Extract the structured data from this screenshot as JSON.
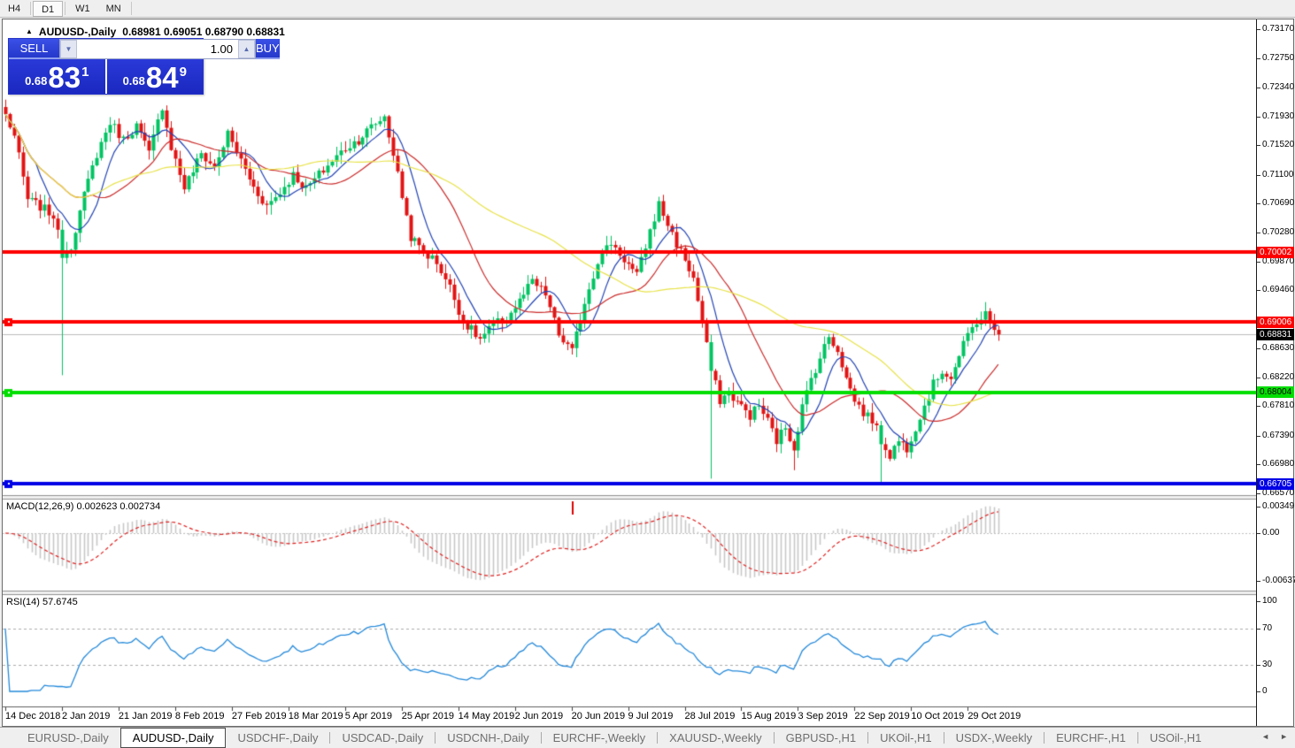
{
  "toolbar": {
    "timeframes": [
      {
        "label": "H4",
        "active": false
      },
      {
        "label": "D1",
        "active": true
      },
      {
        "label": "W1",
        "active": false
      },
      {
        "label": "MN",
        "active": false
      }
    ]
  },
  "window": {
    "collapse_icon": "▲",
    "title_symbol": "AUDUSD-,Daily",
    "title_quotes": "0.68981 0.69051 0.68790 0.68831"
  },
  "trade_panel": {
    "sell_label": "SELL",
    "buy_label": "BUY",
    "volume": "1.00",
    "spinner_down_icon": "▼",
    "spinner_up_icon": "▲",
    "sell_price": {
      "prefix": "0.68",
      "big": "83",
      "sup": "1"
    },
    "buy_price": {
      "prefix": "0.68",
      "big": "84",
      "sup": "9"
    }
  },
  "price_axis": {
    "ticks": [
      "0.73170",
      "0.72750",
      "0.72340",
      "0.71930",
      "0.71520",
      "0.71100",
      "0.70690",
      "0.70280",
      "0.69870",
      "0.69460",
      "0.68630",
      "0.68220",
      "0.67810",
      "0.67390",
      "0.66980",
      "0.66570"
    ],
    "tags": [
      {
        "value": "0.70002",
        "bg": "#FE0000",
        "fg": "#FFFFFF"
      },
      {
        "value": "0.69006",
        "bg": "#FE0000",
        "fg": "#FFFFFF"
      },
      {
        "value": "0.68831",
        "bg": "#000000",
        "fg": "#FFFFFF"
      },
      {
        "value": "0.68004",
        "bg": "#00DE00",
        "fg": "#000000"
      },
      {
        "value": "0.66705",
        "bg": "#0000E6",
        "fg": "#FFFFFF"
      }
    ]
  },
  "indicators": {
    "macd": {
      "label": "MACD(12,26,9) 0.002623 0.002734",
      "axis": [
        "0.00349",
        "0.00",
        "-0.00637"
      ],
      "fast": 12,
      "slow": 26,
      "signal": 9,
      "histogram_color": "#C8C8C8",
      "signal_color": "#E02020",
      "marker": {
        "bar": 130,
        "color": "#DD0000"
      }
    },
    "rsi": {
      "label": "RSI(14) 57.6745",
      "period": 14,
      "axis": [
        "100",
        "70",
        "30",
        "0"
      ],
      "levels": [
        70,
        30
      ],
      "line_color": "#2389DA",
      "level_color": "#ABABAB"
    }
  },
  "chart_data": {
    "type": "candlestick",
    "symbol": "AUDUSD",
    "timeframe": "Daily",
    "ohlc": {
      "open": 0.68981,
      "high": 0.69051,
      "low": 0.6879,
      "close": 0.68831
    },
    "current_price": 0.68831,
    "bars": 229,
    "y_axis_range": [
      0.66546,
      0.733
    ],
    "x_dates": [
      "14 Dec 2018",
      "2 Jan 2019",
      "21 Jan 2019",
      "8 Feb 2019",
      "27 Feb 2019",
      "18 Mar 2019",
      "5 Apr 2019",
      "25 Apr 2019",
      "14 May 2019",
      "2 Jun 2019",
      "20 Jun 2019",
      "9 Jul 2019",
      "28 Jul 2019",
      "15 Aug 2019",
      "3 Sep 2019",
      "22 Sep 2019",
      "10 Oct 2019",
      "29 Oct 2019"
    ],
    "bars_per_date_label": 13,
    "up_color": "#00C462",
    "down_color": "#E21414",
    "ma_lines": [
      {
        "period": 8,
        "color": "#2243B5"
      },
      {
        "period": 21,
        "color": "#CC2B2B"
      },
      {
        "period": 55,
        "color": "#E8E34A"
      }
    ],
    "horizontal_lines": [
      {
        "price": 0.70002,
        "color": "#FE0000",
        "anchor": false
      },
      {
        "price": 0.69006,
        "color": "#FE0000",
        "anchor": true
      },
      {
        "price": 0.68004,
        "color": "#00DE00",
        "anchor": true
      },
      {
        "price": 0.66705,
        "color": "#0000E6",
        "anchor": true
      }
    ],
    "current_price_line_color": "#BDBDBD",
    "price_anchors": [
      [
        0,
        0.7195
      ],
      [
        2,
        0.7165
      ],
      [
        5,
        0.7075
      ],
      [
        8,
        0.7065
      ],
      [
        11,
        0.7052
      ],
      [
        13,
        0.6998
      ],
      [
        15,
        0.701
      ],
      [
        18,
        0.708
      ],
      [
        21,
        0.714
      ],
      [
        24,
        0.7185
      ],
      [
        27,
        0.716
      ],
      [
        30,
        0.718
      ],
      [
        33,
        0.714
      ],
      [
        36,
        0.7208
      ],
      [
        38,
        0.715
      ],
      [
        41,
        0.7092
      ],
      [
        45,
        0.714
      ],
      [
        48,
        0.712
      ],
      [
        51,
        0.7168
      ],
      [
        54,
        0.713
      ],
      [
        57,
        0.7092
      ],
      [
        60,
        0.7066
      ],
      [
        63,
        0.7085
      ],
      [
        66,
        0.711
      ],
      [
        69,
        0.709
      ],
      [
        72,
        0.711
      ],
      [
        75,
        0.713
      ],
      [
        78,
        0.7148
      ],
      [
        81,
        0.716
      ],
      [
        84,
        0.7178
      ],
      [
        87,
        0.7193
      ],
      [
        89,
        0.714
      ],
      [
        91,
        0.708
      ],
      [
        93,
        0.7022
      ],
      [
        96,
        0.7
      ],
      [
        99,
        0.6986
      ],
      [
        102,
        0.695
      ],
      [
        105,
        0.6902
      ],
      [
        109,
        0.6876
      ],
      [
        112,
        0.6896
      ],
      [
        115,
        0.6906
      ],
      [
        118,
        0.693
      ],
      [
        121,
        0.6958
      ],
      [
        124,
        0.694
      ],
      [
        127,
        0.6882
      ],
      [
        130,
        0.6858
      ],
      [
        133,
        0.693
      ],
      [
        136,
        0.6988
      ],
      [
        139,
        0.7014
      ],
      [
        142,
        0.699
      ],
      [
        145,
        0.6966
      ],
      [
        148,
        0.703
      ],
      [
        150,
        0.7068
      ],
      [
        152,
        0.704
      ],
      [
        154,
        0.7012
      ],
      [
        156,
        0.699
      ],
      [
        158,
        0.6962
      ],
      [
        160,
        0.69
      ],
      [
        162,
        0.6832
      ],
      [
        164,
        0.679
      ],
      [
        166,
        0.68
      ],
      [
        169,
        0.678
      ],
      [
        171,
        0.6768
      ],
      [
        173,
        0.6782
      ],
      [
        175,
        0.676
      ],
      [
        177,
        0.6732
      ],
      [
        179,
        0.6752
      ],
      [
        181,
        0.6722
      ],
      [
        183,
        0.678
      ],
      [
        185,
        0.682
      ],
      [
        187,
        0.685
      ],
      [
        189,
        0.688
      ],
      [
        191,
        0.6862
      ],
      [
        193,
        0.682
      ],
      [
        195,
        0.679
      ],
      [
        197,
        0.6772
      ],
      [
        199,
        0.6762
      ],
      [
        201,
        0.6732
      ],
      [
        203,
        0.6712
      ],
      [
        205,
        0.6732
      ],
      [
        207,
        0.6722
      ],
      [
        209,
        0.6752
      ],
      [
        211,
        0.6782
      ],
      [
        213,
        0.6812
      ],
      [
        215,
        0.6832
      ],
      [
        217,
        0.6822
      ],
      [
        219,
        0.6852
      ],
      [
        221,
        0.6882
      ],
      [
        223,
        0.6902
      ],
      [
        225,
        0.6912
      ],
      [
        226,
        0.6896
      ],
      [
        228,
        0.68831
      ]
    ],
    "spikes": [
      {
        "bar": 13,
        "low": 0.6825,
        "dir": "up"
      },
      {
        "bar": 162,
        "low": 0.6678,
        "dir": "up"
      },
      {
        "bar": 181,
        "low": 0.669
      },
      {
        "bar": 201,
        "low": 0.6671,
        "dir": "up"
      },
      {
        "bar": 225,
        "high": 0.6929,
        "dir": "up"
      }
    ]
  },
  "tabs": {
    "items": [
      {
        "label": "EURUSD-,Daily",
        "active": false
      },
      {
        "label": "AUDUSD-,Daily",
        "active": true
      },
      {
        "label": "USDCHF-,Daily",
        "active": false
      },
      {
        "label": "USDCAD-,Daily",
        "active": false
      },
      {
        "label": "USDCNH-,Daily",
        "active": false
      },
      {
        "label": "EURCHF-,Weekly",
        "active": false
      },
      {
        "label": "XAUUSD-,Weekly",
        "active": false
      },
      {
        "label": "GBPUSD-,H1",
        "active": false
      },
      {
        "label": "UKOil-,H1",
        "active": false
      },
      {
        "label": "USDX-,Weekly",
        "active": false
      },
      {
        "label": "EURCHF-,H1",
        "active": false
      },
      {
        "label": "USOil-,H1",
        "active": false
      }
    ],
    "scroll_left_icon": "◄",
    "scroll_right_icon": "►"
  }
}
